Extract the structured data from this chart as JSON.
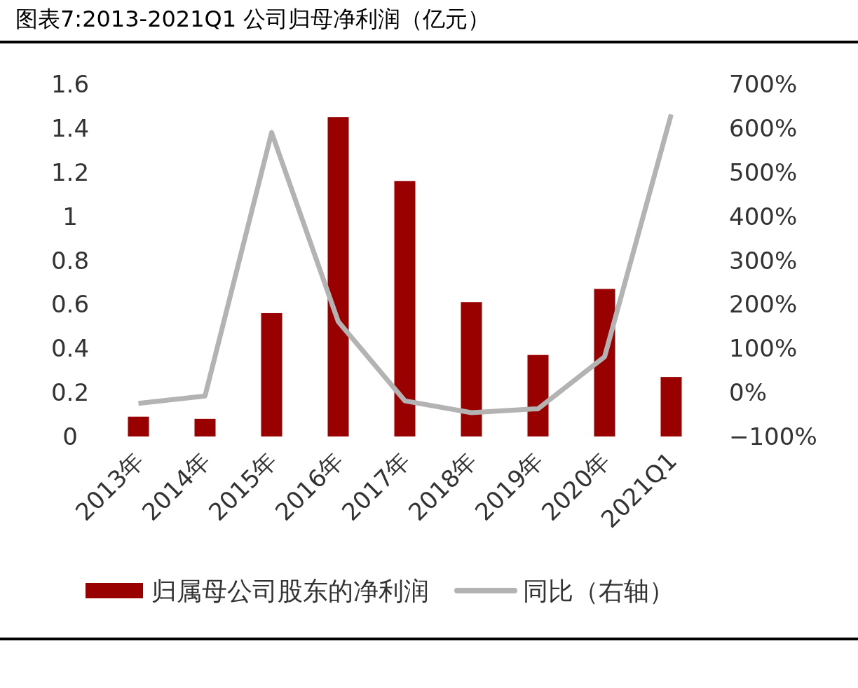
{
  "chart_data": {
    "type": "bar",
    "title": "图表7:2013-2021Q1 公司归母净利润（亿元）",
    "categories": [
      "2013年",
      "2014年",
      "2015年",
      "2016年",
      "2017年",
      "2018年",
      "2019年",
      "2020年",
      "2021Q1"
    ],
    "series": [
      {
        "name": "归属母公司股东的净利润",
        "color": "#990000",
        "values": [
          0.09,
          0.08,
          0.56,
          1.45,
          1.16,
          0.61,
          0.37,
          0.67,
          0.27
        ]
      },
      {
        "name": "同比（右轴）",
        "type": "line",
        "axis": "y2",
        "color": "#b3b3b3",
        "values": [
          -25,
          -8,
          590,
          161,
          -19,
          -46,
          -37,
          81,
          631
        ]
      }
    ],
    "ylim": [
      0,
      1.6
    ],
    "yticks": [
      0,
      0.2,
      0.4,
      0.6,
      0.8,
      1,
      1.2,
      1.4,
      1.6
    ],
    "y2lim": [
      -100,
      700
    ],
    "y2ticks": [
      {
        "value": -100,
        "label": "−100%"
      },
      {
        "value": 0,
        "label": "0%"
      },
      {
        "value": 100,
        "label": "100%"
      },
      {
        "value": 200,
        "label": "200%"
      },
      {
        "value": 300,
        "label": "300%"
      },
      {
        "value": 400,
        "label": "400%"
      },
      {
        "value": 500,
        "label": "500%"
      },
      {
        "value": 600,
        "label": "600%"
      },
      {
        "value": 700,
        "label": "700%"
      }
    ],
    "legend": "bottom",
    "marker": "none"
  }
}
